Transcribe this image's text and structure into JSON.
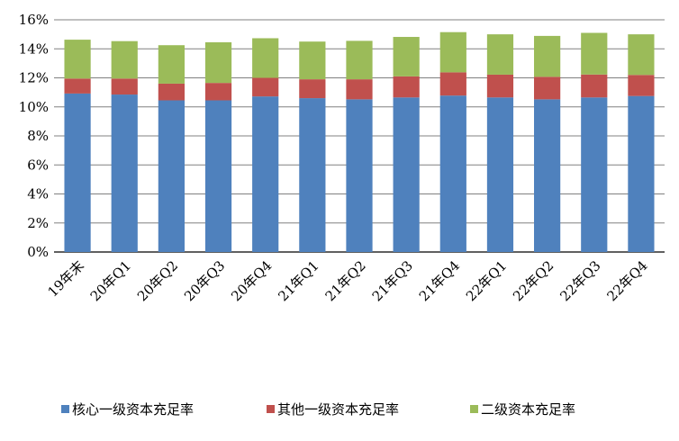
{
  "chart_data": {
    "type": "bar",
    "stacked": true,
    "categories": [
      "19年末",
      "20年Q1",
      "20年Q2",
      "20年Q3",
      "20年Q4",
      "21年Q1",
      "21年Q2",
      "21年Q3",
      "21年Q4",
      "22年Q1",
      "22年Q2",
      "22年Q3",
      "22年Q4"
    ],
    "series": [
      {
        "name": "核心一级资本充足率",
        "color": "#4F81BD",
        "values": [
          10.92,
          10.85,
          10.45,
          10.45,
          10.72,
          10.6,
          10.52,
          10.65,
          10.78,
          10.65,
          10.52,
          10.65,
          10.75
        ]
      },
      {
        "name": "其他一级资本充足率",
        "color": "#C0504D",
        "values": [
          1.03,
          1.1,
          1.15,
          1.2,
          1.28,
          1.3,
          1.38,
          1.45,
          1.6,
          1.57,
          1.55,
          1.58,
          1.45
        ]
      },
      {
        "name": "二级资本充足率",
        "color": "#9BBB59",
        "values": [
          2.68,
          2.58,
          2.65,
          2.8,
          2.73,
          2.6,
          2.65,
          2.72,
          2.77,
          2.78,
          2.82,
          2.87,
          2.8
        ]
      }
    ],
    "y_ticks": [
      "0%",
      "2%",
      "4%",
      "6%",
      "8%",
      "10%",
      "12%",
      "14%",
      "16%"
    ],
    "ylim": [
      0,
      16
    ],
    "grid": true,
    "legend_position": "bottom"
  }
}
